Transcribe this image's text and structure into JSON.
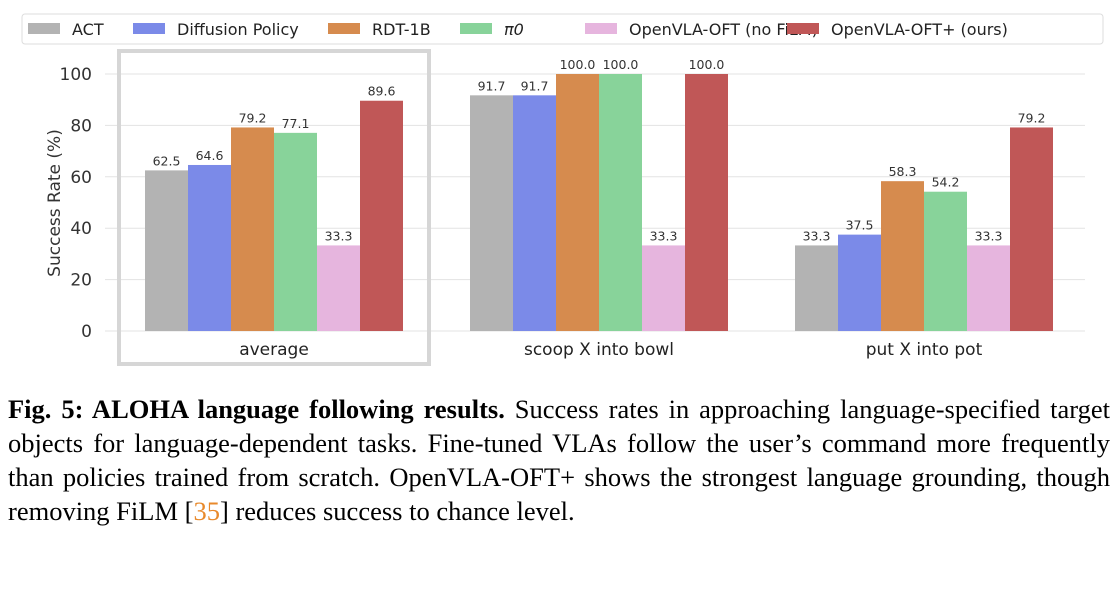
{
  "chart_data": {
    "type": "bar",
    "categories": [
      "average",
      "scoop X into bowl",
      "put X into pot"
    ],
    "highlighted_category": "average",
    "ylabel": "Success Rate (%)",
    "ylim": [
      0,
      105
    ],
    "yticks": [
      0,
      20,
      40,
      60,
      80,
      100
    ],
    "grid": "horizontal",
    "legend_placement": "top",
    "series": [
      {
        "name": "ACT",
        "color": "#b3b3b3",
        "values": [
          62.5,
          91.7,
          33.3
        ]
      },
      {
        "name": "Diffusion Policy",
        "color": "#7b8ae8",
        "values": [
          64.6,
          91.7,
          37.5
        ]
      },
      {
        "name": "RDT-1B",
        "color": "#d68b4e",
        "values": [
          79.2,
          100.0,
          58.3
        ]
      },
      {
        "name": "π0",
        "color": "#88d39a",
        "values": [
          77.1,
          100.0,
          54.2
        ]
      },
      {
        "name": "OpenVLA-OFT (no FiLM)",
        "color": "#e6b5de",
        "values": [
          33.3,
          33.3,
          33.3
        ]
      },
      {
        "name": "OpenVLA-OFT+ (ours)",
        "color": "#c05757",
        "values": [
          89.6,
          100.0,
          79.2
        ]
      }
    ]
  },
  "caption": {
    "label": "Fig. 5: ALOHA language following results.",
    "text_before_cite": " Success rates in approaching language-specified target objects for language-dependent tasks. Fine-tuned VLAs follow the user’s command more frequently than policies trained from scratch. OpenVLA-OFT+ shows the strongest language grounding, though removing FiLM [",
    "cite": "35",
    "text_after_cite": "] reduces success to chance level."
  }
}
